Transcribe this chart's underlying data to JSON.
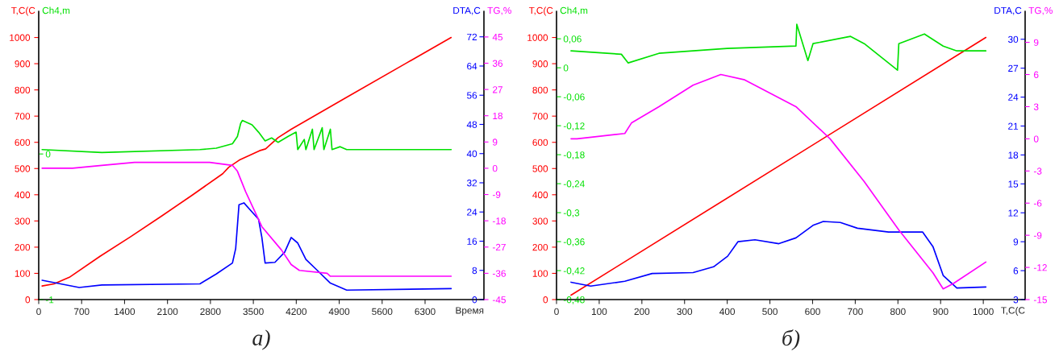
{
  "chart_data": [
    {
      "type": "line",
      "xlabel": "Время",
      "ylabel": "T,C(C",
      "y2label": "Ch4,m",
      "xlim": [
        0,
        7260
      ],
      "xticks": [
        0,
        700,
        1400,
        2100,
        2800,
        3500,
        4200,
        4900,
        5600,
        6300
      ],
      "ylim": [
        0,
        1100
      ],
      "yticks": [
        0,
        100,
        200,
        300,
        400,
        500,
        600,
        700,
        800,
        900,
        1000
      ],
      "y2lim": [
        -1,
        0.98
      ],
      "y2ticks": [
        -1,
        0
      ],
      "grid": false,
      "annotations": [
        "а)"
      ],
      "series": [
        {
          "color": "#ff0000",
          "x": [
            55,
            250,
            500,
            1000,
            1500,
            2000,
            2500,
            3000,
            3100,
            3270,
            3600,
            3700,
            3904,
            4117,
            5000,
            6000,
            6726
          ],
          "values": [
            52,
            60,
            85,
            165,
            240,
            318,
            398,
            480,
            505,
            532,
            568,
            575,
            618,
            650,
            769,
            903,
            1000
          ]
        },
        {
          "axis": "y2",
          "color": "#00e000",
          "x": [
            55,
            1030,
            2628,
            2895,
            3159,
            3240,
            3293,
            3320,
            3479,
            3585,
            3692,
            3798,
            3904,
            4064,
            4197,
            4224,
            4330,
            4357,
            4463,
            4490,
            4623,
            4650,
            4756,
            4783,
            4916,
            5022,
            6726
          ],
          "values": [
            0.03,
            0.01,
            0.03,
            0.04,
            0.07,
            0.12,
            0.21,
            0.23,
            0.2,
            0.15,
            0.09,
            0.11,
            0.08,
            0.12,
            0.15,
            0.03,
            0.1,
            0.03,
            0.17,
            0.03,
            0.18,
            0.03,
            0.17,
            0.03,
            0.05,
            0.03,
            0.03
          ]
        }
      ]
    },
    {
      "type": "line",
      "ylabel": "DTA,C",
      "y2label": "TG,%",
      "tick_labels": "y",
      "xlim": [
        0,
        7260
      ],
      "ylim": [
        0,
        79
      ],
      "yticks": [
        0,
        8,
        16,
        24,
        32,
        40,
        48,
        56,
        64,
        72
      ],
      "y2lim": [
        -45,
        53.8
      ],
      "y2ticks": [
        -45,
        -36,
        -27,
        -18,
        -9,
        0,
        9,
        18,
        27,
        36,
        45
      ],
      "grid": false,
      "series": [
        {
          "color": "#0000ff",
          "x": [
            55,
            660,
            1030,
            2628,
            2895,
            3159,
            3212,
            3266,
            3346,
            3585,
            3639,
            3692,
            3852,
            4011,
            4117,
            4224,
            4357,
            4543,
            4756,
            5022,
            6726
          ],
          "values": [
            5.3,
            3.3,
            4.0,
            4.3,
            7,
            10,
            14,
            26,
            26.5,
            22,
            17,
            10,
            10.2,
            13,
            17,
            15.5,
            11,
            8,
            4.5,
            2.6,
            3.0
          ]
        },
        {
          "axis": "y2",
          "color": "#ff00ff",
          "x": [
            55,
            551,
            1030,
            1562,
            2787,
            3159,
            3240,
            3373,
            3639,
            3958,
            4117,
            4250,
            4703,
            4756,
            6726
          ],
          "values": [
            0,
            0,
            1,
            2,
            2,
            1,
            -1,
            -8,
            -20,
            -28,
            -33,
            -35,
            -36,
            -37,
            -37
          ]
        }
      ]
    },
    {
      "type": "line",
      "xlabel": "T,C(C",
      "ylabel": "T,C(C",
      "y2label": "Ch4,m",
      "xlim": [
        0,
        1098
      ],
      "xticks": [
        0,
        100,
        200,
        300,
        400,
        500,
        600,
        700,
        800,
        900,
        1000
      ],
      "ylim": [
        0,
        1100
      ],
      "yticks": [
        0,
        100,
        200,
        300,
        400,
        500,
        600,
        700,
        800,
        900,
        1000
      ],
      "y2lim": [
        -0.48,
        0.117
      ],
      "y2ticks": [
        {
          "value": -0.48,
          "label": "-0,48"
        },
        {
          "value": -0.42,
          "label": "-0,42"
        },
        {
          "value": -0.36,
          "label": "-0,36"
        },
        {
          "value": -0.3,
          "label": "-0,3"
        },
        {
          "value": -0.24,
          "label": "-0,24"
        },
        {
          "value": -0.18,
          "label": "-0,18"
        },
        {
          "value": -0.12,
          "label": "-0,12"
        },
        {
          "value": -0.06,
          "label": "-0,06"
        },
        0,
        {
          "value": 0.06,
          "label": "0,06"
        }
      ],
      "grid": false,
      "annotations": [
        "б)"
      ],
      "series": [
        {
          "color": "#ff0000",
          "x": [
            34,
            1006
          ],
          "values": [
            17,
            1000
          ]
        },
        {
          "axis": "y2",
          "color": "#00e000",
          "x": [
            34,
            152,
            168,
            240,
            400,
            561,
            563,
            589,
            601,
            689,
            721,
            799,
            802,
            862,
            906,
            938,
            1006
          ],
          "values": [
            0.035,
            0.028,
            0.01,
            0.03,
            0.04,
            0.045,
            0.09,
            0.015,
            0.05,
            0.065,
            0.05,
            -0.005,
            0.05,
            0.07,
            0.045,
            0.035,
            0.035
          ]
        }
      ]
    },
    {
      "type": "line",
      "ylabel": "DTA,C",
      "y2label": "TG,%",
      "tick_labels": "y",
      "xlim": [
        0,
        1098
      ],
      "ylim": [
        3,
        32.9
      ],
      "yticks": [
        3,
        6,
        9,
        12,
        15,
        18,
        21,
        24,
        27,
        30
      ],
      "y2lim": [
        -15,
        11.9
      ],
      "y2ticks": [
        -15,
        -12,
        -9,
        -6,
        -3,
        0,
        3,
        6,
        9
      ],
      "grid": false,
      "series": [
        {
          "color": "#0000ff",
          "x": [
            34,
            80,
            160,
            224,
            320,
            368,
            401,
            425,
            465,
            521,
            561,
            601,
            625,
            665,
            705,
            778,
            858,
            882,
            906,
            938,
            1006
          ],
          "values": [
            4.8,
            4.4,
            4.9,
            5.7,
            5.8,
            6.4,
            7.5,
            9,
            9.2,
            8.8,
            9.4,
            10.7,
            11.1,
            11,
            10.4,
            10,
            10,
            8.5,
            5.5,
            4.2,
            4.3
          ]
        },
        {
          "axis": "y2",
          "color": "#ff00ff",
          "x": [
            34,
            48,
            160,
            176,
            240,
            320,
            385,
            441,
            561,
            641,
            721,
            802,
            882,
            906,
            930,
            1006
          ],
          "values": [
            0,
            0,
            0.5,
            1.5,
            3,
            5,
            6,
            5.5,
            3,
            0,
            -4,
            -8.5,
            -12.5,
            -14,
            -13.5,
            -11.5
          ]
        }
      ]
    }
  ]
}
